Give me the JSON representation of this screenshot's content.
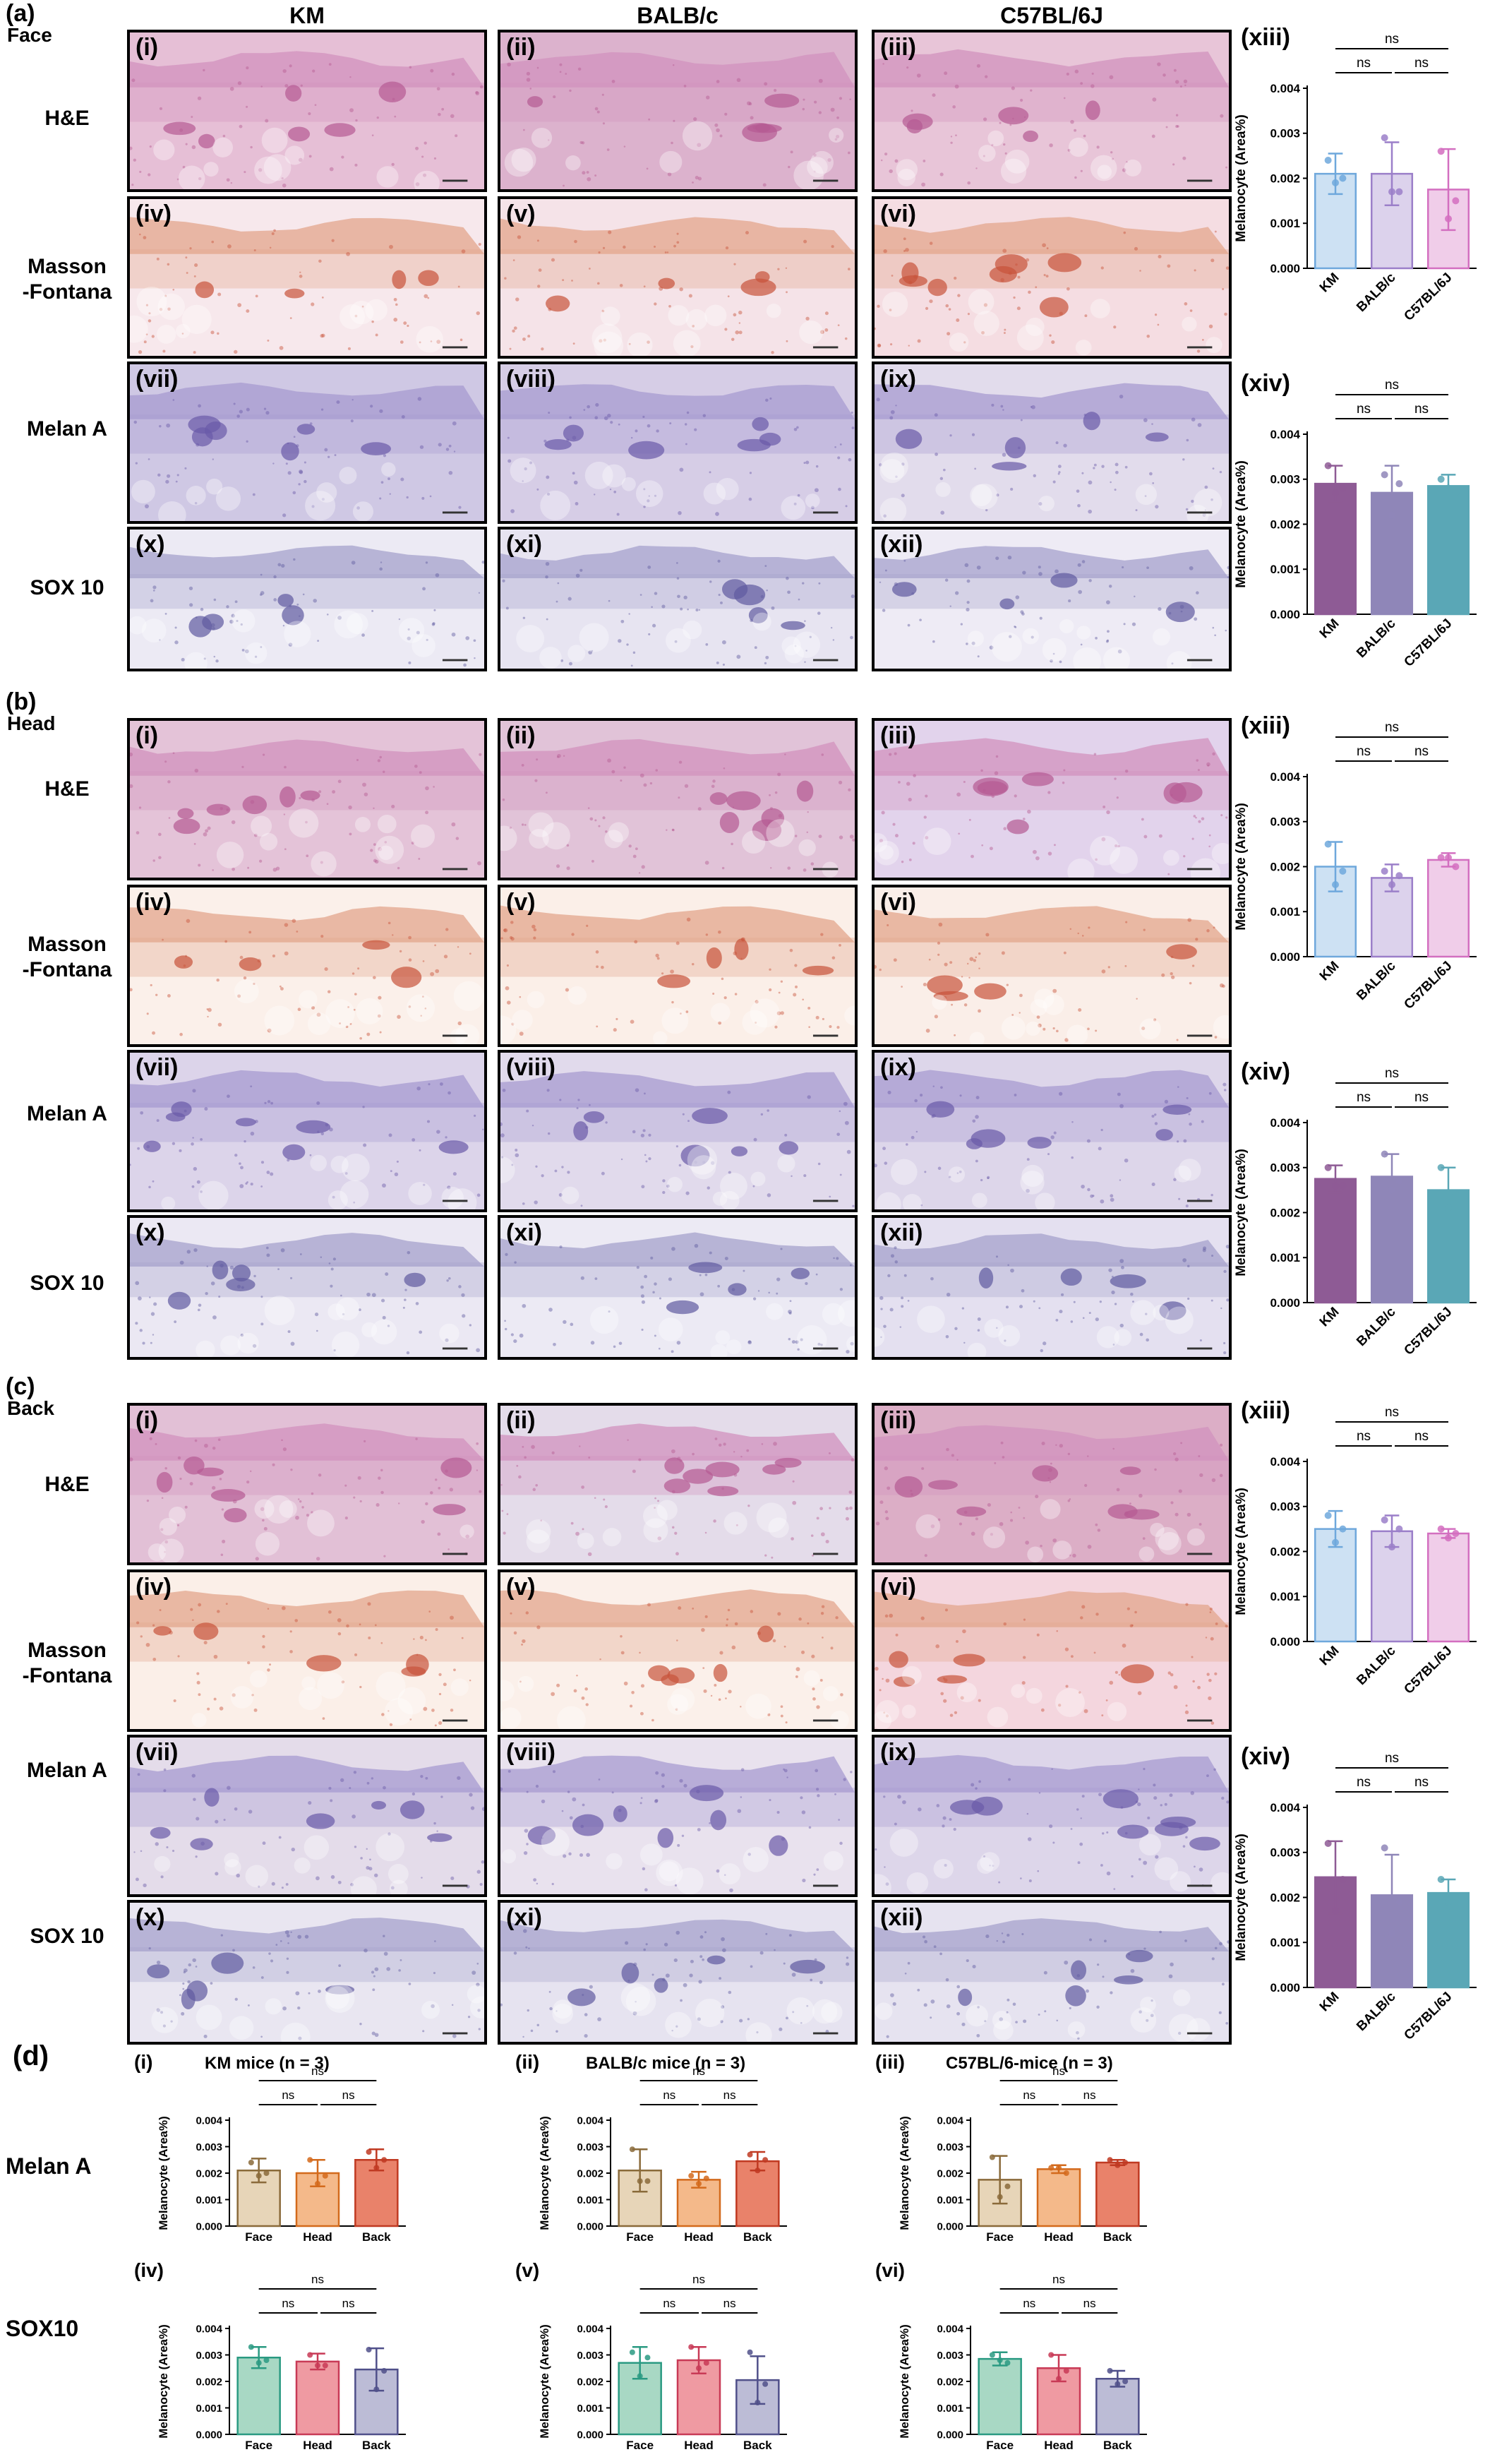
{
  "columns": [
    "KM",
    "BALB/c",
    "C57BL/6J"
  ],
  "stains": [
    "H&E",
    "Masson\n-Fontana",
    "Melan A",
    "SOX 10"
  ],
  "panel_numerals": [
    "(i)",
    "(ii)",
    "(iii)",
    "(iv)",
    "(v)",
    "(vi)",
    "(vii)",
    "(viii)",
    "(ix)",
    "(x)",
    "(xi)",
    "(xii)"
  ],
  "sections": [
    {
      "letter": "(a)",
      "region": "Face",
      "chart_labels": [
        "(xiii)",
        "(xiv)"
      ],
      "tints": [
        [
          "#e6bfd6",
          "#dcb2cd",
          "#e8c5d8"
        ],
        [
          "#f7e8ec",
          "#f5e3e8",
          "#f5dde2"
        ],
        [
          "#cfc8e4",
          "#d6cde6",
          "#e2dcec"
        ],
        [
          "#eceaf4",
          "#e7e4f1",
          "#eeebf5"
        ]
      ]
    },
    {
      "letter": "(b)",
      "region": "Head",
      "chart_labels": [
        "(xiii)",
        "(xiv)"
      ],
      "tints": [
        [
          "#e4c3d8",
          "#e1c3d8",
          "#e2d3ec"
        ],
        [
          "#fbf0ea",
          "#fbefe8",
          "#faeee8"
        ],
        [
          "#dcd4ea",
          "#e1daec",
          "#ddd6ea"
        ],
        [
          "#ebe8f3",
          "#eceaf4",
          "#e4e0f0"
        ]
      ]
    },
    {
      "letter": "(c)",
      "region": "Back",
      "chart_labels": [
        "(xiii)",
        "(xiv)"
      ],
      "tints": [
        [
          "#e2c0d6",
          "#e4dcea",
          "#dcaec6"
        ],
        [
          "#fbefe8",
          "#fbf0ea",
          "#f4d6de"
        ],
        [
          "#e4dcea",
          "#e9e2ee",
          "#ddd6ea"
        ],
        [
          "#e9e6f1",
          "#e6e3f0",
          "#e6e3f0"
        ]
      ]
    }
  ],
  "section_d": {
    "letter": "(d)",
    "row_labels": [
      "Melan A",
      "SOX10"
    ],
    "charts": [
      {
        "label": "(i)",
        "title": "KM mice (n = 3)"
      },
      {
        "label": "(ii)",
        "title": "BALB/c mice (n = 3)"
      },
      {
        "label": "(iii)",
        "title": "C57BL/6-mice (n = 3)"
      },
      {
        "label": "(iv)",
        "title": ""
      },
      {
        "label": "(v)",
        "title": ""
      },
      {
        "label": "(vi)",
        "title": ""
      }
    ]
  },
  "chart_data": [
    {
      "id": "a13",
      "type": "bar",
      "categories": [
        "KM",
        "BALB/c",
        "C57BL/6J"
      ],
      "values": [
        0.0021,
        0.0021,
        0.00175
      ],
      "errors": [
        0.00045,
        0.0007,
        0.0009
      ],
      "points": [
        [
          0.0024,
          0.0019,
          0.002
        ],
        [
          0.0029,
          0.0017,
          0.0017
        ],
        [
          0.0026,
          0.0011,
          0.0015
        ]
      ],
      "colors": [
        "#6fa8dc",
        "#9b7fc9",
        "#d36fc0"
      ],
      "fill_alpha": 0.35,
      "ylabel": "Melanocyte (Area%)",
      "ylim": [
        0,
        0.004
      ],
      "yticks": [
        "0.000",
        "0.001",
        "0.002",
        "0.003",
        "0.004"
      ],
      "sig": [
        "ns",
        "ns",
        "ns"
      ]
    },
    {
      "id": "a14",
      "type": "bar",
      "categories": [
        "KM",
        "BALB/c",
        "C57BL/6J"
      ],
      "values": [
        0.0029,
        0.0027,
        0.00285
      ],
      "errors": [
        0.0004,
        0.0006,
        0.00025
      ],
      "points": [
        [
          0.0033,
          0.0027,
          0.0028
        ],
        [
          0.0031,
          0.0022,
          0.0029
        ],
        [
          0.003,
          0.0028,
          0.0027
        ]
      ],
      "colors": [
        "#8e5b95",
        "#8f86b8",
        "#5aa7b6"
      ],
      "fill_alpha": 1.0,
      "ylabel": "Melanocyte (Area%)",
      "ylim": [
        0,
        0.004
      ],
      "yticks": [
        "0.000",
        "0.001",
        "0.002",
        "0.003",
        "0.004"
      ],
      "sig": [
        "ns",
        "ns",
        "ns"
      ]
    },
    {
      "id": "b13",
      "type": "bar",
      "categories": [
        "KM",
        "BALB/c",
        "C57BL/6J"
      ],
      "values": [
        0.002,
        0.00175,
        0.00215
      ],
      "errors": [
        0.00055,
        0.0003,
        0.00015
      ],
      "points": [
        [
          0.0025,
          0.0016,
          0.0019
        ],
        [
          0.0019,
          0.0016,
          0.0018
        ],
        [
          0.0022,
          0.0022,
          0.002
        ]
      ],
      "colors": [
        "#6fa8dc",
        "#9b7fc9",
        "#d36fc0"
      ],
      "fill_alpha": 0.35,
      "ylabel": "Melanocyte (Area%)",
      "ylim": [
        0,
        0.004
      ],
      "yticks": [
        "0.000",
        "0.001",
        "0.002",
        "0.003",
        "0.004"
      ],
      "sig": [
        "ns",
        "ns",
        "ns"
      ]
    },
    {
      "id": "b14",
      "type": "bar",
      "categories": [
        "KM",
        "BALB/c",
        "C57BL/6J"
      ],
      "values": [
        0.00275,
        0.0028,
        0.0025
      ],
      "errors": [
        0.0003,
        0.0005,
        0.0005
      ],
      "points": [
        [
          0.003,
          0.0026,
          0.0026
        ],
        [
          0.0033,
          0.0025,
          0.0027
        ],
        [
          0.003,
          0.0021,
          0.0024
        ]
      ],
      "colors": [
        "#8e5b95",
        "#8f86b8",
        "#5aa7b6"
      ],
      "fill_alpha": 1.0,
      "ylabel": "Melanocyte (Area%)",
      "ylim": [
        0,
        0.004
      ],
      "yticks": [
        "0.000",
        "0.001",
        "0.002",
        "0.003",
        "0.004"
      ],
      "sig": [
        "ns",
        "ns",
        "ns"
      ]
    },
    {
      "id": "c13",
      "type": "bar",
      "categories": [
        "KM",
        "BALB/c",
        "C57BL/6J"
      ],
      "values": [
        0.0025,
        0.00245,
        0.0024
      ],
      "errors": [
        0.0004,
        0.00035,
        0.0001
      ],
      "points": [
        [
          0.0028,
          0.0022,
          0.0025
        ],
        [
          0.0027,
          0.0021,
          0.0025
        ],
        [
          0.0025,
          0.0023,
          0.0024
        ]
      ],
      "colors": [
        "#6fa8dc",
        "#9b7fc9",
        "#d36fc0"
      ],
      "fill_alpha": 0.35,
      "ylabel": "Melanocyte (Area%)",
      "ylim": [
        0,
        0.004
      ],
      "yticks": [
        "0.000",
        "0.001",
        "0.002",
        "0.003",
        "0.004"
      ],
      "sig": [
        "ns",
        "ns",
        "ns"
      ]
    },
    {
      "id": "c14",
      "type": "bar",
      "categories": [
        "KM",
        "BALB/c",
        "C57BL/6J"
      ],
      "values": [
        0.00245,
        0.00205,
        0.0021
      ],
      "errors": [
        0.0008,
        0.0009,
        0.0003
      ],
      "points": [
        [
          0.0032,
          0.0017,
          0.0024
        ],
        [
          0.0031,
          0.0012,
          0.0019
        ],
        [
          0.0024,
          0.0019,
          0.002
        ]
      ],
      "colors": [
        "#8e5b95",
        "#8f86b8",
        "#5aa7b6"
      ],
      "fill_alpha": 1.0,
      "ylabel": "Melanocyte (Area%)",
      "ylim": [
        0,
        0.004
      ],
      "yticks": [
        "0.000",
        "0.001",
        "0.002",
        "0.003",
        "0.004"
      ],
      "sig": [
        "ns",
        "ns",
        "ns"
      ]
    },
    {
      "id": "d1",
      "type": "bar",
      "categories": [
        "Face",
        "Head",
        "Back"
      ],
      "values": [
        0.0021,
        0.002,
        0.0025
      ],
      "errors": [
        0.00045,
        0.0005,
        0.0004
      ],
      "points": [
        [
          0.0024,
          0.0019,
          0.002
        ],
        [
          0.0025,
          0.0016,
          0.0019
        ],
        [
          0.0028,
          0.0022,
          0.0025
        ]
      ],
      "colors": [
        "#e7d5b8",
        "#f4b98a",
        "#e9826a"
      ],
      "err_colors": [
        "#8a6a3a",
        "#d36a1c",
        "#c03a22"
      ],
      "fill_alpha": 1.0,
      "ylabel": "Melanocyte (Area%)",
      "ylim": [
        0,
        0.004
      ],
      "yticks": [
        "0.000",
        "0.001",
        "0.002",
        "0.003",
        "0.004"
      ],
      "sig": [
        "ns",
        "ns",
        "ns"
      ]
    },
    {
      "id": "d2",
      "type": "bar",
      "categories": [
        "Face",
        "Head",
        "Back"
      ],
      "values": [
        0.0021,
        0.00175,
        0.00245
      ],
      "errors": [
        0.0008,
        0.0003,
        0.00035
      ],
      "points": [
        [
          0.0029,
          0.0017,
          0.0017
        ],
        [
          0.0019,
          0.0016,
          0.0018
        ],
        [
          0.0027,
          0.0021,
          0.0025
        ]
      ],
      "colors": [
        "#e7d5b8",
        "#f4b98a",
        "#e9826a"
      ],
      "err_colors": [
        "#8a6a3a",
        "#d36a1c",
        "#c03a22"
      ],
      "fill_alpha": 1.0,
      "ylabel": "Melanocyte (Area%)",
      "ylim": [
        0,
        0.004
      ],
      "yticks": [
        "0.000",
        "0.001",
        "0.002",
        "0.003",
        "0.004"
      ],
      "sig": [
        "ns",
        "ns",
        "ns"
      ]
    },
    {
      "id": "d3",
      "type": "bar",
      "categories": [
        "Face",
        "Head",
        "Back"
      ],
      "values": [
        0.00175,
        0.00215,
        0.0024
      ],
      "errors": [
        0.0009,
        0.00015,
        0.0001
      ],
      "points": [
        [
          0.0026,
          0.0011,
          0.0015
        ],
        [
          0.0022,
          0.0022,
          0.002
        ],
        [
          0.0025,
          0.0023,
          0.0024
        ]
      ],
      "colors": [
        "#e7d5b8",
        "#f4b98a",
        "#e9826a"
      ],
      "err_colors": [
        "#8a6a3a",
        "#d36a1c",
        "#c03a22"
      ],
      "fill_alpha": 1.0,
      "ylabel": "Melanocyte (Area%)",
      "ylim": [
        0,
        0.004
      ],
      "yticks": [
        "0.000",
        "0.001",
        "0.002",
        "0.003",
        "0.004"
      ],
      "sig": [
        "ns",
        "ns",
        "ns"
      ]
    },
    {
      "id": "d4",
      "type": "bar",
      "categories": [
        "Face",
        "Head",
        "Back"
      ],
      "values": [
        0.0029,
        0.00275,
        0.00245
      ],
      "errors": [
        0.0004,
        0.0003,
        0.0008
      ],
      "points": [
        [
          0.0033,
          0.0027,
          0.0028
        ],
        [
          0.003,
          0.0026,
          0.0026
        ],
        [
          0.0032,
          0.0017,
          0.0024
        ]
      ],
      "colors": [
        "#a8d8c4",
        "#ef9aa2",
        "#bcbcd6"
      ],
      "err_colors": [
        "#2a9a82",
        "#c83a56",
        "#50508a"
      ],
      "fill_alpha": 1.0,
      "ylabel": "Melanocyte (Area%)",
      "ylim": [
        0,
        0.004
      ],
      "yticks": [
        "0.000",
        "0.001",
        "0.002",
        "0.003",
        "0.004"
      ],
      "sig": [
        "ns",
        "ns",
        "ns"
      ]
    },
    {
      "id": "d5",
      "type": "bar",
      "categories": [
        "Face",
        "Head",
        "Back"
      ],
      "values": [
        0.0027,
        0.0028,
        0.00205
      ],
      "errors": [
        0.0006,
        0.0005,
        0.0009
      ],
      "points": [
        [
          0.0031,
          0.0022,
          0.0029
        ],
        [
          0.0033,
          0.0025,
          0.0027
        ],
        [
          0.0031,
          0.0012,
          0.0019
        ]
      ],
      "colors": [
        "#a8d8c4",
        "#ef9aa2",
        "#bcbcd6"
      ],
      "err_colors": [
        "#2a9a82",
        "#c83a56",
        "#50508a"
      ],
      "fill_alpha": 1.0,
      "ylabel": "Melanocyte (Area%)",
      "ylim": [
        0,
        0.004
      ],
      "yticks": [
        "0.000",
        "0.001",
        "0.002",
        "0.003",
        "0.004"
      ],
      "sig": [
        "ns",
        "ns",
        "ns"
      ]
    },
    {
      "id": "d6",
      "type": "bar",
      "categories": [
        "Face",
        "Head",
        "Back"
      ],
      "values": [
        0.00285,
        0.0025,
        0.0021
      ],
      "errors": [
        0.00025,
        0.0005,
        0.0003
      ],
      "points": [
        [
          0.003,
          0.0028,
          0.0027
        ],
        [
          0.003,
          0.0021,
          0.0024
        ],
        [
          0.0024,
          0.0019,
          0.002
        ]
      ],
      "colors": [
        "#a8d8c4",
        "#ef9aa2",
        "#bcbcd6"
      ],
      "err_colors": [
        "#2a9a82",
        "#c83a56",
        "#50508a"
      ],
      "fill_alpha": 1.0,
      "ylabel": "Melanocyte (Area%)",
      "ylim": [
        0,
        0.004
      ],
      "yticks": [
        "0.000",
        "0.001",
        "0.002",
        "0.003",
        "0.004"
      ],
      "sig": [
        "ns",
        "ns",
        "ns"
      ]
    }
  ]
}
